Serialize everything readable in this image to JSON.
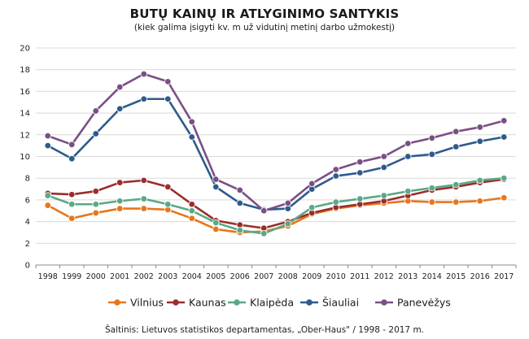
{
  "chart_data": {
    "type": "line",
    "title": "BUTŲ KAINŲ IR ATLYGINIMO SANTYKIS",
    "subtitle": "(kiek galima įsigyti kv. m už vidutinį metinį darbo užmokestį)",
    "x": [
      "1998",
      "1999",
      "2000",
      "2001",
      "2002",
      "2003",
      "2004",
      "2005",
      "2006",
      "2007",
      "2008",
      "2009",
      "2010",
      "2011",
      "2012",
      "2013",
      "2014",
      "2015",
      "2016",
      "2017"
    ],
    "ylim": [
      0,
      20
    ],
    "yticks": [
      "0",
      "2",
      "4",
      "6",
      "8",
      "10",
      "12",
      "14",
      "16",
      "18",
      "20"
    ],
    "grid": true,
    "legend_position": "bottom",
    "series": [
      {
        "name": "Vilnius",
        "color": "#e8761b",
        "values": [
          5.5,
          4.3,
          4.8,
          5.2,
          5.2,
          5.1,
          4.3,
          3.3,
          3.0,
          3.1,
          3.6,
          4.7,
          5.2,
          5.5,
          5.7,
          5.9,
          5.8,
          5.8,
          5.9,
          6.2
        ]
      },
      {
        "name": "Kaunas",
        "color": "#9b2d2a",
        "values": [
          6.6,
          6.5,
          6.8,
          7.6,
          7.8,
          7.2,
          5.6,
          4.1,
          3.7,
          3.4,
          4.0,
          4.8,
          5.3,
          5.6,
          5.9,
          6.4,
          6.9,
          7.2,
          7.6,
          7.9
        ]
      },
      {
        "name": "Klaipėda",
        "color": "#5aa985",
        "values": [
          6.4,
          5.6,
          5.6,
          5.9,
          6.1,
          5.6,
          5.0,
          3.9,
          3.2,
          2.9,
          3.8,
          5.3,
          5.8,
          6.1,
          6.4,
          6.8,
          7.1,
          7.4,
          7.8,
          8.0
        ]
      },
      {
        "name": "Šiauliai",
        "color": "#2f5b8c",
        "values": [
          11.0,
          9.8,
          12.1,
          14.4,
          15.3,
          15.3,
          11.8,
          7.2,
          5.7,
          5.1,
          5.2,
          7.0,
          8.2,
          8.5,
          9.0,
          10.0,
          10.2,
          10.9,
          11.4,
          11.8
        ]
      },
      {
        "name": "Panevėžys",
        "color": "#7b4f86",
        "values": [
          11.9,
          11.1,
          14.2,
          16.4,
          17.6,
          16.9,
          13.2,
          7.9,
          6.9,
          5.0,
          5.7,
          7.5,
          8.8,
          9.5,
          10.0,
          11.2,
          11.7,
          12.3,
          12.7,
          13.3
        ]
      }
    ]
  },
  "source": "Šaltinis: Lietuvos statistikos departamentas,  „Ober-Haus\" / 1998 - 2017 m."
}
